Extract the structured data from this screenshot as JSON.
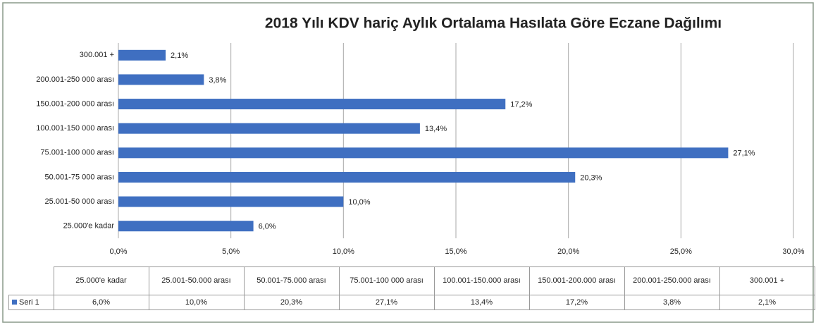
{
  "chart_data": {
    "type": "hbar",
    "title": "2018 Yılı KDV hariç Aylık Ortalama Hasılata Göre Eczane Dağılımı",
    "categories": [
      "25.000'e kadar",
      "25.001-50 000 arası",
      "50.001-75 000 arası",
      "75.001-100 000 arası",
      "100.001-150 000 arası",
      "150.001-200 000 arası",
      "200.001-250 000 arası",
      "300.001 +"
    ],
    "table_categories": [
      "25.000'e kadar",
      "25.001-50.000 arası",
      "50.001-75.000 arası",
      "75.001-100 000 arası",
      "100.001-150.000 arası",
      "150.001-200.000 arası",
      "200.001-250.000 arası",
      "300.001 +"
    ],
    "series": [
      {
        "name": "Seri 1",
        "color": "#3f6fc1",
        "values": [
          6.0,
          10.0,
          20.3,
          27.1,
          13.4,
          17.2,
          3.8,
          2.1
        ],
        "value_labels": [
          "6,0%",
          "10,0%",
          "20,3%",
          "27,1%",
          "13,4%",
          "17,2%",
          "3,8%",
          "2,1%"
        ]
      }
    ],
    "xlim": [
      0,
      30
    ],
    "xticks": [
      {
        "value": 0,
        "label": "0,0%"
      },
      {
        "value": 5,
        "label": "5,0%"
      },
      {
        "value": 10,
        "label": "10,0%"
      },
      {
        "value": 15,
        "label": "15,0%"
      },
      {
        "value": 20,
        "label": "20,0%"
      },
      {
        "value": 25,
        "label": "25,0%"
      },
      {
        "value": 30,
        "label": "30,0%"
      }
    ],
    "grid": true
  }
}
